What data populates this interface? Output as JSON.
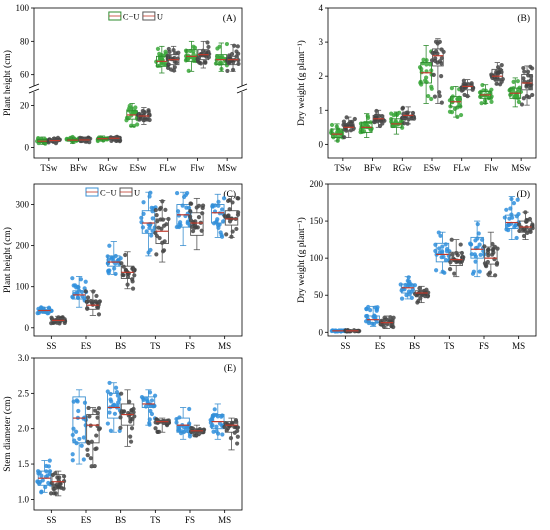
{
  "colors": {
    "cu_green": "#3aa83a",
    "cu_blue": "#2f8fdd",
    "u_dark": "#444444",
    "median": "#c0392b",
    "box_cu_green": "#2e8b2e",
    "box_cu_blue": "#3a8fd0",
    "box_u": "#555555"
  },
  "chart_data": [
    {
      "id": "A",
      "type": "box",
      "panel_label": "(A)",
      "ylabel": "Plant height (cm)",
      "broken_axis": true,
      "ylim_lower": [
        -5,
        25
      ],
      "ylim_upper": [
        55,
        100
      ],
      "yticks_lower": [
        0,
        20
      ],
      "yticks_upper": [
        60,
        80,
        100
      ],
      "categories": [
        "TSw",
        "BFw",
        "RGw",
        "ESw",
        "FLw",
        "Flw",
        "MSw"
      ],
      "legend": [
        "C−U",
        "U"
      ],
      "legend_position": "top-center",
      "series": [
        {
          "name": "C−U",
          "color": "green",
          "boxes": [
            [
              1.5,
              2.5,
              3,
              3.8,
              5
            ],
            [
              2,
              3,
              3.5,
              4,
              5
            ],
            [
              3,
              3.8,
              4.2,
              4.8,
              5.5
            ],
            [
              10,
              13.5,
              15.5,
              17.5,
              21
            ],
            [
              61,
              65,
              68,
              71,
              77
            ],
            [
              62,
              68,
              71,
              75,
              80
            ],
            [
              62,
              66,
              69,
              72,
              79
            ]
          ]
        },
        {
          "name": "U",
          "color": "dark",
          "boxes": [
            [
              2,
              2.8,
              3.3,
              4,
              4.8
            ],
            [
              2.5,
              3.2,
              3.6,
              4.2,
              5
            ],
            [
              3,
              3.8,
              4.4,
              4.9,
              5.3
            ],
            [
              11,
              13,
              15,
              16.5,
              19
            ],
            [
              62,
              66,
              69,
              72,
              77
            ],
            [
              64,
              69,
              72,
              75,
              80
            ],
            [
              62,
              66,
              69,
              71,
              78
            ]
          ]
        }
      ]
    },
    {
      "id": "B",
      "type": "box",
      "panel_label": "(B)",
      "ylabel": "Dry weight (g plant⁻¹)",
      "ylim": [
        -0.4,
        4
      ],
      "yticks": [
        0,
        1,
        2,
        3,
        4
      ],
      "categories": [
        "TSw",
        "BFw",
        "RGw",
        "ESw",
        "FLw",
        "Flw",
        "MSw"
      ],
      "series": [
        {
          "name": "C−U",
          "color": "green",
          "boxes": [
            [
              0.1,
              0.2,
              0.3,
              0.45,
              0.6
            ],
            [
              0.2,
              0.35,
              0.5,
              0.65,
              0.9
            ],
            [
              0.3,
              0.5,
              0.6,
              0.75,
              0.95
            ],
            [
              1.2,
              1.8,
              2.1,
              2.4,
              2.9
            ],
            [
              0.8,
              1.1,
              1.25,
              1.4,
              1.7
            ],
            [
              1.2,
              1.35,
              1.45,
              1.55,
              1.75
            ],
            [
              1.1,
              1.35,
              1.5,
              1.65,
              1.95
            ]
          ]
        },
        {
          "name": "U",
          "color": "dark",
          "boxes": [
            [
              0.2,
              0.4,
              0.5,
              0.6,
              0.8
            ],
            [
              0.5,
              0.65,
              0.75,
              0.85,
              1.0
            ],
            [
              0.6,
              0.75,
              0.85,
              0.95,
              1.1
            ],
            [
              1.2,
              2.3,
              2.6,
              2.8,
              3.1
            ],
            [
              1.4,
              1.6,
              1.7,
              1.8,
              1.9
            ],
            [
              1.75,
              1.9,
              2.0,
              2.2,
              2.4
            ],
            [
              1.15,
              1.6,
              1.8,
              2.05,
              2.3
            ]
          ]
        }
      ]
    },
    {
      "id": "C",
      "type": "box",
      "panel_label": "(C)",
      "ylabel": "Plant height (cm)",
      "ylim": [
        -20,
        350
      ],
      "yticks": [
        0,
        100,
        200,
        300
      ],
      "categories": [
        "SS",
        "ES",
        "BS",
        "TS",
        "FS",
        "MS"
      ],
      "legend": [
        "C−U",
        "U"
      ],
      "legend_position": "top-left",
      "series": [
        {
          "name": "C−U",
          "color": "blue",
          "boxes": [
            [
              35,
              38,
              42,
              45,
              50
            ],
            [
              50,
              70,
              80,
              90,
              125
            ],
            [
              130,
              150,
              160,
              175,
              210
            ],
            [
              175,
              230,
              255,
              285,
              330
            ],
            [
              200,
              245,
              275,
              300,
              330
            ],
            [
              220,
              255,
              280,
              300,
              325
            ]
          ]
        },
        {
          "name": "U",
          "color": "dark",
          "boxes": [
            [
              10,
              15,
              18,
              22,
              28
            ],
            [
              30,
              45,
              55,
              65,
              90
            ],
            [
              95,
              120,
              135,
              150,
              185
            ],
            [
              160,
              205,
              235,
              265,
              310
            ],
            [
              190,
              225,
              255,
              280,
              315
            ],
            [
              220,
              250,
              265,
              285,
              320
            ]
          ]
        }
      ]
    },
    {
      "id": "D",
      "type": "box",
      "panel_label": "(D)",
      "ylabel": "Dry weight (g plant⁻¹)",
      "ylim": [
        -5,
        200
      ],
      "yticks": [
        0,
        50,
        100,
        150,
        200
      ],
      "categories": [
        "SS",
        "ES",
        "BS",
        "TS",
        "FS",
        "MS"
      ],
      "series": [
        {
          "name": "C−U",
          "color": "blue",
          "boxes": [
            [
              1,
              1.5,
              2,
              2.5,
              3
            ],
            [
              8,
              13,
              17,
              22,
              35
            ],
            [
              45,
              53,
              60,
              65,
              75
            ],
            [
              80,
              95,
              105,
              120,
              135
            ],
            [
              75,
              100,
              112,
              128,
              150
            ],
            [
              125,
              140,
              148,
              158,
              183
            ]
          ]
        },
        {
          "name": "U",
          "color": "dark",
          "boxes": [
            [
              1,
              1.5,
              2,
              2.5,
              3
            ],
            [
              5,
              10,
              13,
              17,
              22
            ],
            [
              40,
              48,
              53,
              56,
              62
            ],
            [
              75,
              90,
              98,
              108,
              125
            ],
            [
              75,
              92,
              100,
              115,
              135
            ],
            [
              125,
              135,
              142,
              150,
              162
            ]
          ]
        }
      ]
    },
    {
      "id": "E",
      "type": "box",
      "panel_label": "(E)",
      "ylabel": "Stem diameter (cm)",
      "ylim": [
        0.85,
        3.0
      ],
      "yticks": [
        1.0,
        1.5,
        2.0,
        2.5,
        3.0
      ],
      "categories": [
        "SS",
        "ES",
        "BS",
        "TS",
        "FS",
        "MS"
      ],
      "series": [
        {
          "name": "C−U",
          "color": "blue",
          "boxes": [
            [
              1.1,
              1.2,
              1.3,
              1.4,
              1.55
            ],
            [
              1.5,
              1.8,
              2.15,
              2.45,
              2.55
            ],
            [
              1.95,
              2.15,
              2.3,
              2.5,
              2.65
            ],
            [
              2.05,
              2.3,
              2.35,
              2.45,
              2.55
            ],
            [
              1.85,
              1.95,
              2.05,
              2.15,
              2.3
            ],
            [
              1.85,
              2.0,
              2.1,
              2.2,
              2.35
            ]
          ]
        },
        {
          "name": "U",
          "color": "dark",
          "boxes": [
            [
              1.05,
              1.15,
              1.25,
              1.35,
              1.4
            ],
            [
              1.45,
              1.8,
              2.05,
              2.2,
              2.3
            ],
            [
              1.75,
              2.05,
              2.2,
              2.35,
              2.55
            ],
            [
              1.95,
              2.08,
              2.1,
              2.12,
              2.15
            ],
            [
              1.9,
              1.95,
              1.97,
              2.0,
              2.05
            ],
            [
              1.7,
              1.95,
              2.05,
              2.1,
              2.15
            ]
          ]
        }
      ]
    }
  ]
}
